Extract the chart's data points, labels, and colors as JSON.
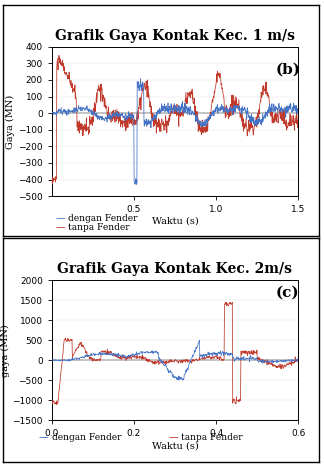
{
  "chart_b": {
    "title": "Grafik Gaya Kontak Kec. 1 m/s",
    "xlabel": "Waktu (s)",
    "ylabel": "Gaya (MN)",
    "label_b": "(b)",
    "xlim": [
      0,
      1.5
    ],
    "ylim": [
      -500,
      400
    ],
    "yticks": [
      -500,
      -400,
      -300,
      -200,
      -100,
      0,
      100,
      200,
      300,
      400
    ],
    "xticks": [
      0.5,
      1.0,
      1.5
    ],
    "legend": [
      "dengan Fender",
      "tanpa Fender"
    ],
    "colors": {
      "dengan": "#4472C4",
      "tanpa": "#C0392B"
    }
  },
  "chart_c": {
    "title": "Grafik Gaya Kontak Kec. 2m/s",
    "xlabel": "Waktu (s)",
    "ylabel": "gaya (MN)",
    "label_c": "(c)",
    "xlim": [
      0,
      0.6
    ],
    "ylim": [
      -1500,
      2000
    ],
    "yticks": [
      -1500,
      -1000,
      -500,
      0,
      500,
      1000,
      1500,
      2000
    ],
    "xticks": [
      0,
      0.2,
      0.4,
      0.6
    ],
    "legend": [
      "dengan Fender",
      "tanpa Fender"
    ],
    "colors": {
      "dengan": "#4472C4",
      "tanpa": "#C0392B"
    }
  },
  "background": "#FFFFFF",
  "title_fontsize": 10,
  "label_fontsize": 7,
  "tick_fontsize": 6.5
}
